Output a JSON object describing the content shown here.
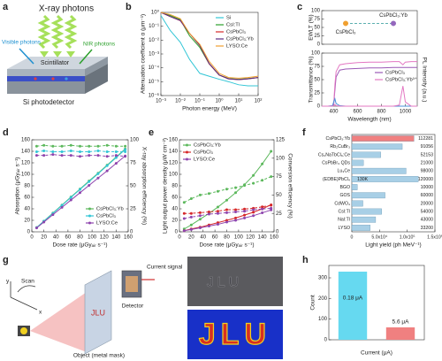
{
  "panel_labels": [
    "a",
    "b",
    "c",
    "d",
    "e",
    "f",
    "g",
    "h"
  ],
  "illustration_a": [
    "X-ray photons",
    "Visible photons",
    "NIR photons",
    "Scintillator",
    "Si photodetector"
  ],
  "illustration_g": [
    "Scan",
    "x",
    "y",
    "Current signal",
    "Detector",
    "Object (metal mask)",
    "JLU"
  ],
  "chart_data": [
    {
      "type": "line",
      "x_label": "Photon energy (MeV)",
      "y_label": "Attenuation coefficient α (μm⁻¹)",
      "x_log": true,
      "y_log": true,
      "xlim": [
        0.001,
        100
      ],
      "ylim": [
        1e-06,
        1
      ],
      "xticks": [
        {
          "value": 0.001,
          "label": "10⁻³"
        },
        {
          "value": 0.01,
          "label": "10⁻²"
        },
        {
          "value": 0.1,
          "label": "10⁻¹"
        },
        {
          "value": 1,
          "label": "10⁰"
        },
        {
          "value": 10,
          "label": "10¹"
        },
        {
          "value": 100,
          "label": "10²"
        }
      ],
      "yticks": [
        {
          "value": 1e-06,
          "label": "10⁻⁶"
        },
        {
          "value": 1e-05,
          "label": "10⁻⁵"
        },
        {
          "value": 0.0001,
          "label": "10⁻⁴"
        },
        {
          "value": 0.001,
          "label": "10⁻³"
        },
        {
          "value": 0.01,
          "label": "10⁻²"
        },
        {
          "value": 0.1,
          "label": "10⁻¹"
        },
        {
          "value": 1,
          "label": "10⁰"
        }
      ],
      "x": [
        0.001,
        0.003,
        0.01,
        0.03,
        0.1,
        0.3,
        1,
        3,
        10,
        30,
        100
      ],
      "legend": "upper right",
      "series": [
        {
          "name": "Si",
          "color": "#33c6d6",
          "values": [
            0.6,
            0.05,
            0.007,
            0.0004,
            4e-05,
            2.5e-05,
            1.5e-05,
            1e-05,
            6e-06,
            5e-06,
            5e-06
          ]
        },
        {
          "name": "CsI:Tl",
          "color": "#2ca02c",
          "values": [
            1,
            0.6,
            0.3,
            0.02,
            0.003,
            0.0002,
            3e-05,
            1.7e-05,
            1.5e-05,
            1.7e-05,
            2e-05
          ]
        },
        {
          "name": "CsPbCl₃",
          "color": "#d62728",
          "values": [
            1,
            0.5,
            0.25,
            0.03,
            0.004,
            0.0002,
            3e-05,
            1.6e-05,
            1.4e-05,
            1.6e-05,
            2e-05
          ]
        },
        {
          "name": "CsPbCl₃:Yb",
          "color": "#5b2c83",
          "values": [
            1,
            0.5,
            0.26,
            0.03,
            0.0042,
            0.00021,
            3e-05,
            1.6e-05,
            1.4e-05,
            1.6e-05,
            2e-05
          ]
        },
        {
          "name": "LYSO:Ce",
          "color": "#f0a030",
          "values": [
            1,
            0.7,
            0.35,
            0.03,
            0.005,
            0.0003,
            4e-05,
            2e-05,
            1.8e-05,
            2e-05,
            2.5e-05
          ]
        }
      ]
    },
    {
      "type": "line",
      "y_label": "EWLT (%)",
      "categories": [
        "CsPbCl₃",
        "CsPbCl₃:Yb"
      ],
      "values": [
        62,
        62
      ],
      "color": "#5cb0b0",
      "point_colors": [
        "#f0a030",
        "#9467bd"
      ],
      "dashed": true,
      "ylim": [
        0,
        100
      ],
      "yticks": [
        0,
        25,
        50,
        75,
        100
      ]
    },
    {
      "type": "line",
      "x_label": "Wavelength (nm)",
      "y_label": "Transmittance (%)",
      "y2_label": "PL Intensity (a.u.)",
      "xlim": [
        300,
        1100
      ],
      "xticks": [
        400,
        600,
        800,
        1000
      ],
      "ylim": [
        0,
        100
      ],
      "yticks": [
        0,
        25,
        50,
        75,
        100
      ],
      "y2lim": [
        0,
        100
      ],
      "x": [
        300,
        350,
        390,
        400,
        410,
        420,
        450,
        500,
        600,
        700,
        800,
        900,
        950,
        980,
        1000,
        1050,
        1100
      ],
      "legend": "center right",
      "series": [
        {
          "name": "CsPbCl₃",
          "color": "#9b59b6",
          "values": [
            0,
            0,
            0,
            3,
            30,
            55,
            68,
            70,
            71,
            72,
            72,
            73,
            73,
            73,
            73,
            73,
            73
          ]
        },
        {
          "name": "CsPbCl₃:Yb³⁺",
          "color": "#e377c2",
          "values": [
            0,
            0,
            0,
            5,
            40,
            65,
            78,
            80,
            82,
            83,
            83,
            84,
            84,
            78,
            83,
            84,
            84
          ]
        },
        {
          "color": "#4a90d9",
          "axis": "y2",
          "values": [
            0,
            0,
            1,
            8,
            14,
            5,
            1,
            0,
            0,
            0,
            0,
            0,
            0,
            0,
            0,
            0,
            0
          ]
        },
        {
          "color": "#e377c2",
          "axis": "y2",
          "values": [
            0,
            0,
            0,
            1,
            3,
            1,
            0,
            0,
            0,
            0,
            0,
            0,
            2,
            38,
            8,
            0,
            0
          ]
        }
      ]
    },
    {
      "type": "line",
      "x_label": "Dose rate (μGyₐᵢᵣ s⁻¹)",
      "y_label": "Absorption (μGyₐᵢᵣ s⁻¹)",
      "y2_label": "X-ray absorption efficiency (%)",
      "xlim": [
        0,
        160
      ],
      "xticks": [
        0,
        20,
        40,
        60,
        80,
        100,
        120,
        140,
        160
      ],
      "ylim": [
        0,
        160
      ],
      "yticks": [
        0,
        20,
        40,
        60,
        80,
        100,
        120,
        140,
        160
      ],
      "y2lim": [
        0,
        100
      ],
      "y2ticks": [
        0,
        25,
        50,
        75,
        100
      ],
      "markers": true,
      "legend": "lower right",
      "x": [
        8,
        20,
        35,
        50,
        65,
        80,
        95,
        110,
        125,
        140,
        155
      ],
      "series": [
        {
          "name": "CsPbCl₃:Yb",
          "color": "#5cb85c",
          "values": [
            7.5,
            18.6,
            32.6,
            46.5,
            60.5,
            74.4,
            88.4,
            102,
            116,
            130,
            144
          ]
        },
        {
          "name": "CsPbCl₃",
          "color": "#33c6d6",
          "values": [
            7.4,
            18.4,
            32.2,
            46,
            59.8,
            73.6,
            87.4,
            101,
            115,
            129,
            143
          ]
        },
        {
          "name": "LYSO:Ce",
          "color": "#8e44ad",
          "values": [
            6.8,
            17,
            29.8,
            42.5,
            55.3,
            68,
            80.8,
            93.5,
            106,
            119,
            132
          ]
        },
        {
          "color": "#5cb85c",
          "axis": "y2",
          "dashed": true,
          "values": [
            93,
            94,
            93,
            93,
            94,
            93,
            93,
            93,
            94,
            93,
            93
          ]
        },
        {
          "color": "#33c6d6",
          "axis": "y2",
          "dashed": true,
          "values": [
            87,
            88,
            87,
            87,
            88,
            87,
            87,
            88,
            87,
            87,
            87
          ]
        },
        {
          "color": "#8e44ad",
          "axis": "y2",
          "dashed": true,
          "values": [
            83,
            83,
            84,
            83,
            83,
            82,
            83,
            83,
            82,
            83,
            82
          ]
        }
      ]
    },
    {
      "type": "line",
      "x_label": "Dose rate (μGyₐᵢᵣ s⁻¹)",
      "y_label": "Light output power density (μW cm⁻²)",
      "y2_label": "Conversion efficiency (%)",
      "xlim": [
        0,
        160
      ],
      "xticks": [
        0,
        20,
        40,
        60,
        80,
        100,
        120,
        140,
        160
      ],
      "ylim": [
        0,
        160
      ],
      "yticks": [
        0,
        20,
        40,
        60,
        80,
        100,
        120,
        140,
        160
      ],
      "y2lim": [
        0,
        125
      ],
      "y2ticks": [
        0,
        25,
        50,
        75,
        100,
        125
      ],
      "markers": true,
      "legend": "upper left",
      "x": [
        8,
        20,
        35,
        50,
        65,
        80,
        95,
        110,
        125,
        140,
        155
      ],
      "series": [
        {
          "name": "CsPbCl₃:Yb",
          "color": "#5cb85c",
          "values": [
            5,
            12,
            22,
            32,
            43,
            55,
            68,
            82,
            98,
            118,
            140
          ]
        },
        {
          "name": "CsPbCl₃",
          "color": "#d62728",
          "values": [
            2,
            5,
            8,
            12,
            16,
            20,
            24,
            29,
            34,
            40,
            47
          ]
        },
        {
          "name": "LYSO:Ce",
          "color": "#8e44ad",
          "values": [
            2,
            4,
            7,
            10,
            13,
            17,
            20,
            24,
            28,
            33,
            38
          ]
        },
        {
          "color": "#5cb85c",
          "axis": "y2",
          "dashed": true,
          "values": [
            40,
            45,
            50,
            52,
            55,
            58,
            60,
            63,
            66,
            70,
            75
          ]
        },
        {
          "color": "#d62728",
          "axis": "y2",
          "dashed": true,
          "values": [
            25,
            25,
            26,
            27,
            28,
            30,
            30,
            31,
            32,
            34,
            36
          ]
        },
        {
          "color": "#8e44ad",
          "axis": "y2",
          "dashed": true,
          "values": [
            18,
            20,
            22,
            24,
            25,
            26,
            27,
            28,
            30,
            31,
            32
          ]
        }
      ]
    },
    {
      "type": "bar",
      "orientation": "horizontal",
      "x_label": "Light yield (ph MeV⁻¹)",
      "categories": [
        "CsPbCl₃:Yb",
        "Rb₂CuBr₃",
        "Cs₂NaTbCl₆:Ce",
        "CsPbBr₃ QDs",
        "Lu₃Ce",
        "(EDBE)PbCl₄",
        "BGO",
        "GOS",
        "CdWO₄",
        "CsI:Tl",
        "NaI:Tl",
        "LYSO"
      ],
      "values": [
        112281,
        91056,
        52153,
        21000,
        98000,
        120000,
        10000,
        60000,
        20000,
        54000,
        43000,
        33200
      ],
      "notes": [
        null,
        null,
        null,
        null,
        null,
        "130K",
        null,
        null,
        null,
        null,
        null,
        null
      ],
      "colors": [
        "#f08080",
        "#a8cfe6",
        "#a8cfe6",
        "#a8cfe6",
        "#a8cfe6",
        "#a8cfe6",
        "#a8cfe6",
        "#a8cfe6",
        "#a8cfe6",
        "#a8cfe6",
        "#a8cfe6",
        "#a8cfe6"
      ],
      "xlim": [
        0,
        150000
      ],
      "xticks": [
        0,
        {
          "value": 50000,
          "label": "5.0x10⁴"
        },
        {
          "value": 100000,
          "label": "1.0x10⁵"
        },
        {
          "value": 150000,
          "label": "1.5x10⁵"
        }
      ]
    },
    {
      "type": "bar",
      "orientation": "vertical",
      "x_label": "Current (μA)",
      "y_label": "Count",
      "categories": [
        "0.18 μA",
        "5.6 μA"
      ],
      "values": [
        330,
        60
      ],
      "colors": [
        "#66d9f0",
        "#f08080"
      ],
      "ylim": [
        0,
        360
      ],
      "yticks": [
        0,
        100,
        200,
        300
      ]
    }
  ]
}
